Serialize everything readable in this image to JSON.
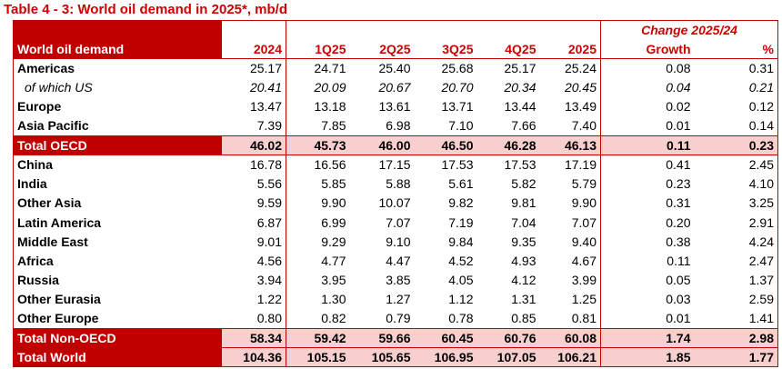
{
  "title": "Table 4 - 3: World oil demand in 2025*, mb/d",
  "colors": {
    "accent": "#c00000",
    "header_text": "#cc0000",
    "total_row_fill": "#f8cfcf"
  },
  "table": {
    "header": {
      "row_label": "World oil demand",
      "change_group": "Change 2025/24",
      "columns": [
        "2024",
        "1Q25",
        "2Q25",
        "3Q25",
        "4Q25",
        "2025",
        "Growth",
        "%"
      ]
    },
    "rows": [
      {
        "label": "Americas",
        "values": [
          "25.17",
          "24.71",
          "25.40",
          "25.68",
          "25.17",
          "25.24",
          "0.08",
          "0.31"
        ]
      },
      {
        "label": "of which US",
        "values": [
          "20.41",
          "20.09",
          "20.67",
          "20.70",
          "20.34",
          "20.45",
          "0.04",
          "0.21"
        ]
      },
      {
        "label": "Europe",
        "values": [
          "13.47",
          "13.18",
          "13.61",
          "13.71",
          "13.44",
          "13.49",
          "0.02",
          "0.12"
        ]
      },
      {
        "label": "Asia Pacific",
        "values": [
          "7.39",
          "7.85",
          "6.98",
          "7.10",
          "7.66",
          "7.40",
          "0.01",
          "0.14"
        ]
      },
      {
        "label": "Total OECD",
        "values": [
          "46.02",
          "45.73",
          "46.00",
          "46.50",
          "46.28",
          "46.13",
          "0.11",
          "0.23"
        ]
      },
      {
        "label": "China",
        "values": [
          "16.78",
          "16.56",
          "17.15",
          "17.53",
          "17.53",
          "17.19",
          "0.41",
          "2.45"
        ]
      },
      {
        "label": "India",
        "values": [
          "5.56",
          "5.85",
          "5.88",
          "5.61",
          "5.82",
          "5.79",
          "0.23",
          "4.10"
        ]
      },
      {
        "label": "Other Asia",
        "values": [
          "9.59",
          "9.90",
          "10.07",
          "9.82",
          "9.81",
          "9.90",
          "0.31",
          "3.25"
        ]
      },
      {
        "label": "Latin America",
        "values": [
          "6.87",
          "6.99",
          "7.07",
          "7.19",
          "7.04",
          "7.07",
          "0.20",
          "2.91"
        ]
      },
      {
        "label": "Middle East",
        "values": [
          "9.01",
          "9.29",
          "9.10",
          "9.84",
          "9.35",
          "9.40",
          "0.38",
          "4.24"
        ]
      },
      {
        "label": "Africa",
        "values": [
          "4.56",
          "4.77",
          "4.47",
          "4.52",
          "4.93",
          "4.67",
          "0.11",
          "2.47"
        ]
      },
      {
        "label": "Russia",
        "values": [
          "3.94",
          "3.95",
          "3.85",
          "4.05",
          "4.12",
          "3.99",
          "0.05",
          "1.37"
        ]
      },
      {
        "label": "Other Eurasia",
        "values": [
          "1.22",
          "1.30",
          "1.27",
          "1.12",
          "1.31",
          "1.25",
          "0.03",
          "2.59"
        ]
      },
      {
        "label": "Other Europe",
        "values": [
          "0.80",
          "0.82",
          "0.79",
          "0.78",
          "0.85",
          "0.81",
          "0.01",
          "1.41"
        ]
      },
      {
        "label": "Total Non-OECD",
        "values": [
          "58.34",
          "59.42",
          "59.66",
          "60.45",
          "60.76",
          "60.08",
          "1.74",
          "2.98"
        ]
      },
      {
        "label": "Total World",
        "values": [
          "104.36",
          "105.15",
          "105.65",
          "106.95",
          "107.05",
          "106.21",
          "1.85",
          "1.77"
        ]
      }
    ]
  }
}
